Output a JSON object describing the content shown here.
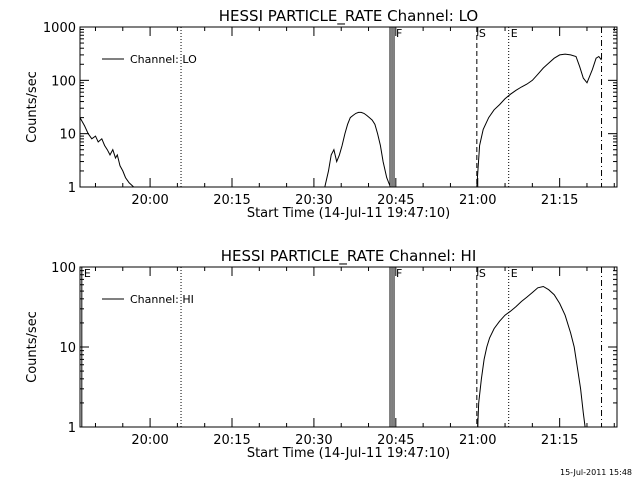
{
  "chart_data": [
    {
      "type": "line",
      "title": "HESSI PARTICLE_RATE Channel: LO",
      "xlabel": "Start Time (14-Jul-11 19:47:10)",
      "ylabel": "Counts/sec",
      "y_scale": "log",
      "ylim": [
        1,
        1000
      ],
      "xlim": [
        "19:47:10",
        "21:25:30"
      ],
      "x_ticks": [
        "20:00",
        "20:15",
        "20:30",
        "20:45",
        "21:00",
        "21:15"
      ],
      "y_ticks": [
        "1",
        "10",
        "100",
        "1000"
      ],
      "legend": "top-left",
      "series": [
        {
          "name": "Channel: LO",
          "x": [
            "19:47:10",
            "19:48:00",
            "19:48:40",
            "19:49:20",
            "19:50:00",
            "19:50:30",
            "19:51:10",
            "19:51:40",
            "19:52:10",
            "19:52:40",
            "19:53:10",
            "19:53:40",
            "19:54:00",
            "19:54:30",
            "19:55:00",
            "19:55:30",
            "19:56:10",
            "19:57:00"
          ],
          "values": [
            20,
            14,
            10,
            8,
            9,
            7,
            8,
            6,
            5,
            4,
            5,
            3.5,
            4,
            2.5,
            2,
            1.5,
            1.2,
            1
          ]
        },
        {
          "name": "Channel: LO",
          "x": [
            "20:32:00",
            "20:32:40",
            "20:33:10",
            "20:33:40",
            "20:34:10",
            "20:34:40",
            "20:35:10",
            "20:35:40",
            "20:36:10",
            "20:36:40",
            "20:37:10",
            "20:37:40",
            "20:38:10",
            "20:38:40",
            "20:39:10",
            "20:39:40",
            "20:40:10",
            "20:40:40",
            "20:41:10",
            "20:41:40",
            "20:42:10",
            "20:42:40",
            "20:43:20",
            "20:44:00"
          ],
          "values": [
            1,
            2,
            4,
            5,
            3,
            4,
            6,
            10,
            15,
            20,
            22,
            24,
            25,
            25,
            24,
            22,
            20,
            18,
            15,
            10,
            6,
            3,
            1.5,
            1
          ]
        },
        {
          "name": "Channel: LO",
          "x": [
            "20:59:50",
            "21:00:20",
            "21:01:00",
            "21:02:00",
            "21:03:00",
            "21:04:00",
            "21:05:00",
            "21:06:00",
            "21:07:00",
            "21:08:00",
            "21:09:00",
            "21:10:00",
            "21:11:00",
            "21:12:00",
            "21:13:00",
            "21:14:00",
            "21:15:00",
            "21:16:00",
            "21:17:00",
            "21:18:00",
            "21:18:40",
            "21:19:20",
            "21:20:00",
            "21:21:00",
            "21:21:40",
            "21:22:10",
            "21:22:40"
          ],
          "values": [
            1,
            6,
            12,
            20,
            28,
            35,
            45,
            55,
            65,
            75,
            85,
            100,
            130,
            170,
            210,
            260,
            300,
            310,
            300,
            280,
            180,
            110,
            90,
            160,
            260,
            280,
            240
          ]
        }
      ],
      "markers": [
        {
          "label": "",
          "time": "20:05:40",
          "style": "dotted"
        },
        {
          "label": "F",
          "time": "20:44:40",
          "style": "solid"
        },
        {
          "label": "S",
          "time": "20:59:50",
          "style": "dashed"
        },
        {
          "label": "E",
          "time": "21:05:40",
          "style": "dotted"
        },
        {
          "label": "",
          "time": "21:22:40",
          "style": "dashdot"
        }
      ]
    },
    {
      "type": "line",
      "title": "HESSI PARTICLE_RATE Channel: HI",
      "xlabel": "Start Time (14-Jul-11 19:47:10)",
      "ylabel": "Counts/sec",
      "y_scale": "log",
      "ylim": [
        1,
        100
      ],
      "xlim": [
        "19:47:10",
        "21:25:30"
      ],
      "x_ticks": [
        "20:00",
        "20:15",
        "20:30",
        "20:45",
        "21:00",
        "21:15"
      ],
      "y_ticks": [
        "1",
        "10",
        "100"
      ],
      "legend": "top-left",
      "series": [
        {
          "name": "Channel: HI",
          "x": [
            "21:00:00",
            "21:00:10",
            "21:00:40",
            "21:01:10",
            "21:01:40",
            "21:02:10",
            "21:03:00",
            "21:04:00",
            "21:05:00",
            "21:06:00",
            "21:07:00",
            "21:08:00",
            "21:09:00",
            "21:10:00",
            "21:11:00",
            "21:12:00",
            "21:13:00",
            "21:14:00",
            "21:15:00",
            "21:16:00",
            "21:17:00",
            "21:17:40",
            "21:18:20",
            "21:18:50",
            "21:19:20",
            "21:19:40"
          ],
          "values": [
            1,
            2,
            4,
            7,
            10,
            13,
            17,
            21,
            25,
            28,
            32,
            37,
            42,
            48,
            55,
            57,
            52,
            45,
            35,
            25,
            15,
            10,
            5,
            3,
            1.5,
            1
          ]
        }
      ],
      "markers": [
        {
          "label": "E",
          "time": "19:47:30",
          "style": "solid"
        },
        {
          "label": "",
          "time": "20:05:40",
          "style": "dotted"
        },
        {
          "label": "F",
          "time": "20:44:40",
          "style": "solid"
        },
        {
          "label": "S",
          "time": "20:59:50",
          "style": "dashed"
        },
        {
          "label": "E",
          "time": "21:05:40",
          "style": "dotted"
        },
        {
          "label": "",
          "time": "21:22:40",
          "style": "dashdot"
        }
      ]
    }
  ],
  "footer": {
    "timestamp": "15-Jul-2011 15:48"
  }
}
